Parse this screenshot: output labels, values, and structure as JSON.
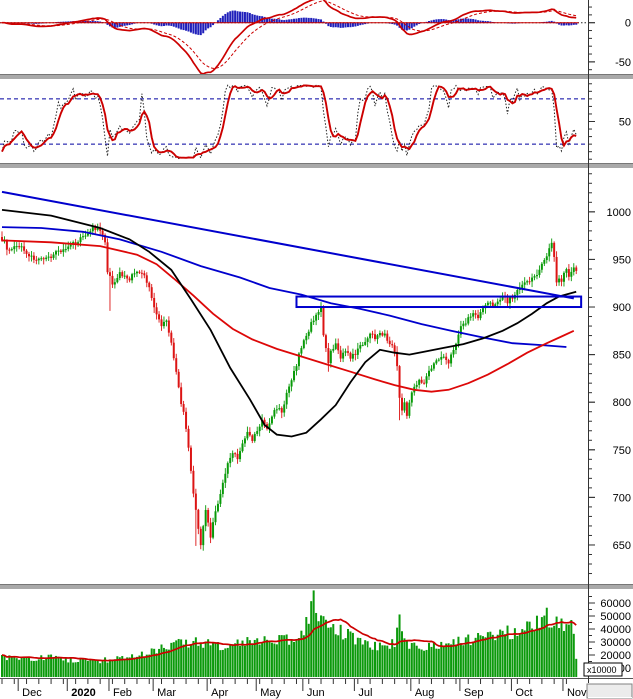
{
  "chart_data": {
    "type": "candlestick",
    "description": "Multi-panel daily technical chart: MACD, Stochastic, candlestick price with moving averages / trendline / consolidation box, and volume",
    "n_candles": 235,
    "x_axis": {
      "months": [
        {
          "label": "Dec",
          "idx": 7,
          "bold": false
        },
        {
          "label": "2020",
          "idx": 27,
          "bold": true
        },
        {
          "label": "Feb",
          "idx": 44,
          "bold": false
        },
        {
          "label": "Mar",
          "idx": 62,
          "bold": false
        },
        {
          "label": "Apr",
          "idx": 84,
          "bold": false
        },
        {
          "label": "May",
          "idx": 104,
          "bold": false
        },
        {
          "label": "Jun",
          "idx": 123,
          "bold": false
        },
        {
          "label": "Jul",
          "idx": 144,
          "bold": false
        },
        {
          "label": "Aug",
          "idx": 167,
          "bold": false
        },
        {
          "label": "Sep",
          "idx": 187,
          "bold": false
        },
        {
          "label": "Oct",
          "idx": 208,
          "bold": false
        },
        {
          "label": "Nov",
          "idx": 229,
          "bold": false
        }
      ],
      "minor_tick_every": 5
    },
    "panels": {
      "macd": {
        "ylim": [
          -65.5,
          29
        ],
        "ticks": [
          {
            "label": "0",
            "value": 0
          },
          {
            "label": "-50",
            "value": -50
          }
        ],
        "minor_step": 10,
        "zero_line": 0,
        "params": {
          "fast": 12,
          "slow": 26,
          "signal": 9
        }
      },
      "stoch": {
        "ylim": [
          -5,
          105
        ],
        "ticks": [
          {
            "label": "50",
            "value": 50
          }
        ],
        "minor_step": 10,
        "thresholds": [
          80,
          20
        ],
        "params": {
          "lookback": 14,
          "smooth": 4
        }
      },
      "price": {
        "ylim": [
          609,
          1045
        ],
        "ticks": [
          {
            "label": "1000",
            "value": 1000
          },
          {
            "label": "950",
            "value": 950
          },
          {
            "label": "900",
            "value": 900
          },
          {
            "label": "850",
            "value": 850
          },
          {
            "label": "800",
            "value": 800
          },
          {
            "label": "750",
            "value": 750
          },
          {
            "label": "700",
            "value": 700
          },
          {
            "label": "650",
            "value": 650
          }
        ],
        "minor_step": 10,
        "close_anchors": [
          [
            0,
            972
          ],
          [
            3,
            958
          ],
          [
            7,
            965
          ],
          [
            12,
            952
          ],
          [
            17,
            948
          ],
          [
            22,
            958
          ],
          [
            27,
            962
          ],
          [
            32,
            972
          ],
          [
            37,
            983
          ],
          [
            40,
            980
          ],
          [
            42,
            968
          ],
          [
            43,
            936
          ],
          [
            45,
            925
          ],
          [
            48,
            935
          ],
          [
            52,
            930
          ],
          [
            55,
            938
          ],
          [
            58,
            932
          ],
          [
            60,
            920
          ],
          [
            62,
            900
          ],
          [
            64,
            888
          ],
          [
            65,
            880
          ],
          [
            67,
            888
          ],
          [
            69,
            862
          ],
          [
            70,
            845
          ],
          [
            71,
            830
          ],
          [
            72,
            815
          ],
          [
            73,
            800
          ],
          [
            74,
            788
          ],
          [
            75,
            770
          ],
          [
            76,
            750
          ],
          [
            77,
            728
          ],
          [
            78,
            705
          ],
          [
            79,
            685
          ],
          [
            80,
            668
          ],
          [
            81,
            652
          ],
          [
            82,
            668
          ],
          [
            83,
            685
          ],
          [
            84,
            672
          ],
          [
            85,
            658
          ],
          [
            86,
            672
          ],
          [
            88,
            695
          ],
          [
            90,
            715
          ],
          [
            92,
            735
          ],
          [
            94,
            748
          ],
          [
            96,
            742
          ],
          [
            98,
            755
          ],
          [
            100,
            768
          ],
          [
            102,
            760
          ],
          [
            104,
            770
          ],
          [
            106,
            780
          ],
          [
            108,
            772
          ],
          [
            110,
            785
          ],
          [
            112,
            795
          ],
          [
            114,
            790
          ],
          [
            116,
            808
          ],
          [
            118,
            822
          ],
          [
            120,
            840
          ],
          [
            122,
            858
          ],
          [
            124,
            870
          ],
          [
            126,
            882
          ],
          [
            128,
            893
          ],
          [
            130,
            900
          ],
          [
            131,
            868
          ],
          [
            132,
            856
          ],
          [
            133,
            840
          ],
          [
            134,
            852
          ],
          [
            136,
            860
          ],
          [
            138,
            848
          ],
          [
            140,
            855
          ],
          [
            142,
            845
          ],
          [
            144,
            852
          ],
          [
            146,
            858
          ],
          [
            148,
            865
          ],
          [
            150,
            872
          ],
          [
            152,
            868
          ],
          [
            154,
            875
          ],
          [
            156,
            870
          ],
          [
            158,
            862
          ],
          [
            160,
            855
          ],
          [
            161,
            838
          ],
          [
            162,
            805
          ],
          [
            163,
            790
          ],
          [
            164,
            800
          ],
          [
            165,
            788
          ],
          [
            166,
            802
          ],
          [
            168,
            815
          ],
          [
            170,
            825
          ],
          [
            172,
            820
          ],
          [
            174,
            832
          ],
          [
            176,
            840
          ],
          [
            178,
            845
          ],
          [
            180,
            850
          ],
          [
            182,
            843
          ],
          [
            184,
            855
          ],
          [
            186,
            872
          ],
          [
            187,
            878
          ],
          [
            188,
            882
          ],
          [
            190,
            888
          ],
          [
            192,
            894
          ],
          [
            194,
            890
          ],
          [
            196,
            898
          ],
          [
            198,
            905
          ],
          [
            200,
            900
          ],
          [
            202,
            908
          ],
          [
            204,
            912
          ],
          [
            206,
            906
          ],
          [
            208,
            910
          ],
          [
            210,
            916
          ],
          [
            213,
            924
          ],
          [
            216,
            930
          ],
          [
            218,
            936
          ],
          [
            220,
            944
          ],
          [
            222,
            954
          ],
          [
            223,
            962
          ],
          [
            224,
            968
          ],
          [
            225,
            955
          ],
          [
            226,
            925
          ],
          [
            227,
            932
          ],
          [
            228,
            928
          ],
          [
            229,
            936
          ],
          [
            230,
            940
          ],
          [
            231,
            934
          ],
          [
            232,
            938
          ],
          [
            233,
            942
          ],
          [
            234,
            938
          ]
        ],
        "low_overrides": {
          "44": 896,
          "79": 649,
          "85": 652,
          "133": 832,
          "162": 781
        },
        "high_overrides": {
          "37": 988,
          "224": 972
        },
        "ma_black_anchors": [
          [
            0,
            1002
          ],
          [
            20,
            996
          ],
          [
            40,
            983
          ],
          [
            52,
            971
          ],
          [
            60,
            958
          ],
          [
            69,
            939
          ],
          [
            77,
            908
          ],
          [
            85,
            876
          ],
          [
            93,
            836
          ],
          [
            101,
            803
          ],
          [
            107,
            776
          ],
          [
            112,
            766
          ],
          [
            118,
            764
          ],
          [
            124,
            768
          ],
          [
            130,
            782
          ],
          [
            136,
            797
          ],
          [
            142,
            821
          ],
          [
            148,
            842
          ],
          [
            154,
            855
          ],
          [
            160,
            852
          ],
          [
            166,
            850
          ],
          [
            172,
            853
          ],
          [
            180,
            857
          ],
          [
            188,
            861
          ],
          [
            196,
            867
          ],
          [
            204,
            875
          ],
          [
            210,
            883
          ],
          [
            216,
            893
          ],
          [
            222,
            904
          ],
          [
            227,
            911
          ],
          [
            231,
            914
          ],
          [
            234,
            916
          ]
        ],
        "ma_red_anchors": [
          [
            0,
            970
          ],
          [
            20,
            968
          ],
          [
            40,
            964
          ],
          [
            55,
            955
          ],
          [
            63,
            945
          ],
          [
            70,
            930
          ],
          [
            78,
            912
          ],
          [
            86,
            893
          ],
          [
            94,
            877
          ],
          [
            102,
            866
          ],
          [
            112,
            856
          ],
          [
            122,
            848
          ],
          [
            132,
            840
          ],
          [
            142,
            832
          ],
          [
            152,
            824
          ],
          [
            160,
            818
          ],
          [
            168,
            813
          ],
          [
            175,
            811
          ],
          [
            182,
            813
          ],
          [
            190,
            820
          ],
          [
            198,
            829
          ],
          [
            206,
            840
          ],
          [
            214,
            852
          ],
          [
            222,
            862
          ],
          [
            228,
            869
          ],
          [
            233,
            875
          ]
        ],
        "ma_blue_anchors": [
          [
            0,
            984
          ],
          [
            16,
            983
          ],
          [
            33,
            979
          ],
          [
            48,
            971
          ],
          [
            65,
            958
          ],
          [
            81,
            943
          ],
          [
            97,
            931
          ],
          [
            109,
            920
          ],
          [
            122,
            913
          ],
          [
            134,
            904
          ],
          [
            146,
            898
          ],
          [
            158,
            891
          ],
          [
            171,
            882
          ],
          [
            183,
            875
          ],
          [
            196,
            868
          ],
          [
            208,
            862
          ],
          [
            220,
            860
          ],
          [
            230,
            858
          ]
        ],
        "trendline": {
          "from": [
            0,
            1021
          ],
          "to": [
            233,
            909
          ]
        },
        "box": {
          "idx1": 120,
          "idx2": 236,
          "value_top": 911,
          "value_bottom": 900
        }
      },
      "volume": {
        "ylim": [
          2300,
          70000
        ],
        "ticks": [
          {
            "label": "60000",
            "value": 60000
          },
          {
            "label": "50000",
            "value": 50000
          },
          {
            "label": "40000",
            "value": 40000
          },
          {
            "label": "30000",
            "value": 30000
          },
          {
            "label": "20000",
            "value": 20000
          },
          {
            "label": "10000",
            "value": 10000
          }
        ],
        "minor_step": 5000,
        "multiplier_label": "x10000",
        "volume_anchors": [
          [
            0,
            18000
          ],
          [
            10,
            17000
          ],
          [
            20,
            18500
          ],
          [
            30,
            15500
          ],
          [
            40,
            16000
          ],
          [
            50,
            18000
          ],
          [
            60,
            22000
          ],
          [
            70,
            28000
          ],
          [
            80,
            30000
          ],
          [
            90,
            26000
          ],
          [
            100,
            30000
          ],
          [
            110,
            30000
          ],
          [
            120,
            34000
          ],
          [
            125,
            45000
          ],
          [
            127,
            65000
          ],
          [
            130,
            48000
          ],
          [
            135,
            42000
          ],
          [
            140,
            36000
          ],
          [
            145,
            30000
          ],
          [
            150,
            27000
          ],
          [
            155,
            26000
          ],
          [
            160,
            30000
          ],
          [
            162,
            50000
          ],
          [
            165,
            28000
          ],
          [
            170,
            26000
          ],
          [
            175,
            28000
          ],
          [
            180,
            28000
          ],
          [
            187,
            30000
          ],
          [
            195,
            34000
          ],
          [
            200,
            36000
          ],
          [
            208,
            38000
          ],
          [
            214,
            42000
          ],
          [
            218,
            44000
          ],
          [
            221,
            52000
          ],
          [
            224,
            46000
          ],
          [
            228,
            44000
          ],
          [
            231,
            46000
          ],
          [
            233,
            40000
          ],
          [
            234,
            16000
          ]
        ],
        "ma_period": 15
      }
    },
    "colors": {
      "candle_up": "#089a08",
      "candle_down": "#dc1414",
      "volume_bar": "#0c9a0c",
      "volume_ma": "#cc0000",
      "ma_black": "#000000",
      "ma_red": "#dd0808",
      "ma_blue": "#0000cd",
      "trendline": "#0000cd",
      "box": "#0000cd",
      "macd_hist": "#2020bb",
      "macd_line": "#cc0000",
      "macd_signal": "#cc0000",
      "stoch_line": "#cc0000",
      "stoch_dotted": "#222222",
      "threshold_dashed": "#0000a0",
      "axis": "#333333",
      "separator": "#a9a9a9",
      "text": "#000000"
    }
  }
}
